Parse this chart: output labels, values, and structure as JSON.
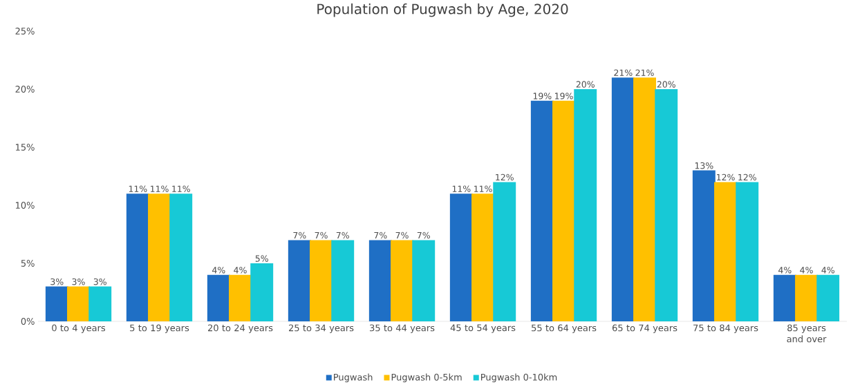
{
  "chart_data": {
    "type": "bar",
    "title": "Population of Pugwash by Age, 2020",
    "categories": [
      "0 to 4 years",
      "5 to 19 years",
      "20 to 24 years",
      "25 to 34 years",
      "35 to 44 years",
      "45 to 54 years",
      "55 to 64 years",
      "65 to 74 years",
      "75 to 84 years",
      "85 years and over"
    ],
    "series": [
      {
        "name": "Pugwash",
        "color": "#1f6fc5",
        "values": [
          3,
          11,
          4,
          7,
          7,
          11,
          19,
          21,
          13,
          4
        ],
        "value_labels": [
          "3%",
          "11%",
          "4%",
          "7%",
          "7%",
          "11%",
          "19%",
          "21%",
          "13%",
          "4%"
        ]
      },
      {
        "name": "Pugwash 0-5km",
        "color": "#ffc000",
        "values": [
          3,
          11,
          4,
          7,
          7,
          11,
          19,
          21,
          12,
          4
        ],
        "value_labels": [
          "3%",
          "11%",
          "4%",
          "7%",
          "7%",
          "11%",
          "19%",
          "21%",
          "12%",
          "4%"
        ]
      },
      {
        "name": "Pugwash 0-10km",
        "color": "#17c9d6",
        "values": [
          3,
          11,
          5,
          7,
          7,
          12,
          20,
          20,
          12,
          4
        ],
        "value_labels": [
          "3%",
          "11%",
          "5%",
          "7%",
          "7%",
          "12%",
          "20%",
          "20%",
          "12%",
          "4%"
        ]
      }
    ],
    "ylim": [
      0,
      25
    ],
    "yticks": [
      {
        "value": 0,
        "label": "0%"
      },
      {
        "value": 5,
        "label": "5%"
      },
      {
        "value": 10,
        "label": "10%"
      },
      {
        "value": 15,
        "label": "15%"
      },
      {
        "value": 20,
        "label": "20%"
      },
      {
        "value": 25,
        "label": "25%"
      }
    ],
    "grid": false,
    "legend": "bottom"
  }
}
